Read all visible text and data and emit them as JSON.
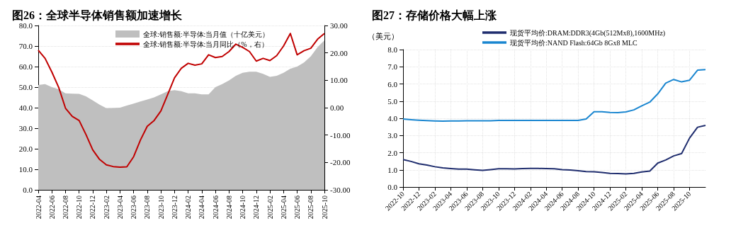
{
  "chart_data": [
    {
      "type": "area",
      "title": "图26：全球半导体销售额加速增长",
      "categories": [
        "2022-04",
        null,
        "2022-06",
        null,
        "2022-08",
        null,
        "2022-10",
        null,
        "2022-12",
        null,
        "2023-02",
        null,
        "2023-04",
        null,
        "2023-06",
        null,
        "2023-08",
        null,
        "2023-10",
        null,
        "2023-12",
        null,
        "2024-02",
        null,
        "2024-04",
        null,
        "2024-06",
        null,
        "2024-08",
        null,
        "2024-10",
        null,
        "2024-12",
        null,
        "2025-02",
        null,
        "2025-04",
        null,
        "2025-06",
        null,
        "2025-08",
        null,
        "2025-10"
      ],
      "series": [
        {
          "name": "全球:销售额:半导体:当月值（十亿美元）",
          "color": "#bfbfbf",
          "values": [
            51,
            51.5,
            50,
            49,
            47,
            46.8,
            46.7,
            45.5,
            43.5,
            41.5,
            39.7,
            39.8,
            40,
            41,
            42,
            43,
            44,
            45,
            46.5,
            48,
            48.5,
            48,
            47,
            47,
            46.5,
            46.5,
            50,
            51.5,
            53.3,
            55.5,
            57,
            57.5,
            57.5,
            56.5,
            55,
            55.5,
            57,
            59,
            60,
            62,
            65,
            69.5,
            72.8
          ]
        },
        {
          "name": "全球:销售额:半导体:当月同比（%，右）",
          "type": "line",
          "axis": "y2",
          "color": "#c00000",
          "values": [
            21,
            18,
            13,
            7.4,
            -0.2,
            -3.2,
            -4.7,
            -9.8,
            -15.4,
            -18.9,
            -20.9,
            -21.5,
            -21.7,
            -21.6,
            -17.9,
            -11.8,
            -6.8,
            -4.7,
            -1.2,
            4.8,
            10.9,
            14.4,
            16.2,
            15.5,
            16,
            19.3,
            18.3,
            18.7,
            20.5,
            23.2,
            22,
            20.5,
            17,
            18,
            17.2,
            19,
            22.5,
            27.1,
            19.3,
            20.8,
            21.7,
            25,
            27.1
          ]
        }
      ],
      "ylim": [
        0,
        80
      ],
      "yticks": [
        {
          "value": 0,
          "label": "0.0"
        },
        {
          "value": 10,
          "label": "10.0"
        },
        {
          "value": 20,
          "label": "20.0"
        },
        {
          "value": 30,
          "label": "30.0"
        },
        {
          "value": 40,
          "label": "40.0"
        },
        {
          "value": 50,
          "label": "50.0"
        },
        {
          "value": 60,
          "label": "60.0"
        },
        {
          "value": 70,
          "label": "70.0"
        },
        {
          "value": 80,
          "label": "80.0"
        }
      ],
      "y2lim": [
        -30,
        30
      ],
      "y2ticks": [
        {
          "value": -30,
          "label": "-30.00"
        },
        {
          "value": -20,
          "label": "-20.00"
        },
        {
          "value": -10,
          "label": "-10.00"
        },
        {
          "value": 0,
          "label": "0.00"
        },
        {
          "value": 10,
          "label": "10.00"
        },
        {
          "value": 20,
          "label": "20.00"
        },
        {
          "value": 30,
          "label": "30.00"
        }
      ],
      "grid": "y",
      "legend": "top",
      "marker": "none"
    },
    {
      "type": "line",
      "title": "图27：存储价格大幅上涨",
      "ylabel": "（美元）",
      "categories": [
        "2022-10",
        null,
        "2022-12",
        null,
        "2023-02",
        null,
        "2023-04",
        null,
        "2023-06",
        null,
        "2023-08",
        null,
        "2023-10",
        null,
        "2023-12",
        null,
        "2024-02",
        null,
        "2024-04",
        null,
        "2024-06",
        null,
        "2024-08",
        null,
        "2024-10",
        null,
        "2024-12",
        null,
        "2025-02",
        null,
        "2025-04",
        null,
        "2025-06",
        null,
        "2025-08",
        null,
        "2025-10",
        null,
        null
      ],
      "series": [
        {
          "name": "现货平均价:DRAM:DDR3(4Gb(512Mx8),1600MHz)",
          "color": "#1f2d6e",
          "values": [
            1.6,
            1.49,
            1.35,
            1.28,
            1.18,
            1.11,
            1.07,
            1.04,
            1.04,
            1.0,
            0.97,
            1.01,
            1.06,
            1.06,
            1.05,
            1.07,
            1.08,
            1.08,
            1.07,
            1.06,
            1.01,
            0.99,
            0.95,
            0.9,
            0.89,
            0.85,
            0.79,
            0.78,
            0.76,
            0.79,
            0.88,
            0.93,
            1.39,
            1.57,
            1.81,
            1.95,
            2.85,
            3.48,
            3.59
          ]
        },
        {
          "name": "现货平均价:NAND Flash:64Gb 8Gx8 MLC",
          "color": "#1a86d0",
          "values": [
            3.96,
            3.92,
            3.89,
            3.87,
            3.85,
            3.84,
            3.85,
            3.85,
            3.86,
            3.86,
            3.86,
            3.86,
            3.88,
            3.88,
            3.88,
            3.88,
            3.88,
            3.88,
            3.88,
            3.88,
            3.88,
            3.88,
            3.88,
            3.96,
            4.38,
            4.38,
            4.34,
            4.33,
            4.37,
            4.49,
            4.73,
            4.94,
            5.42,
            6.05,
            6.26,
            6.12,
            6.22,
            6.8,
            6.83
          ]
        }
      ],
      "ylim": [
        0,
        8
      ],
      "yticks": [
        {
          "value": 0,
          "label": "0.0"
        },
        {
          "value": 1,
          "label": "1.0"
        },
        {
          "value": 2,
          "label": "2.0"
        },
        {
          "value": 3,
          "label": "3.0"
        },
        {
          "value": 4,
          "label": "4.0"
        },
        {
          "value": 5,
          "label": "5.0"
        },
        {
          "value": 6,
          "label": "6.0"
        },
        {
          "value": 7,
          "label": "7.0"
        },
        {
          "value": 8,
          "label": "8.0"
        }
      ],
      "grid": true,
      "legend": "top",
      "marker": "none"
    }
  ]
}
